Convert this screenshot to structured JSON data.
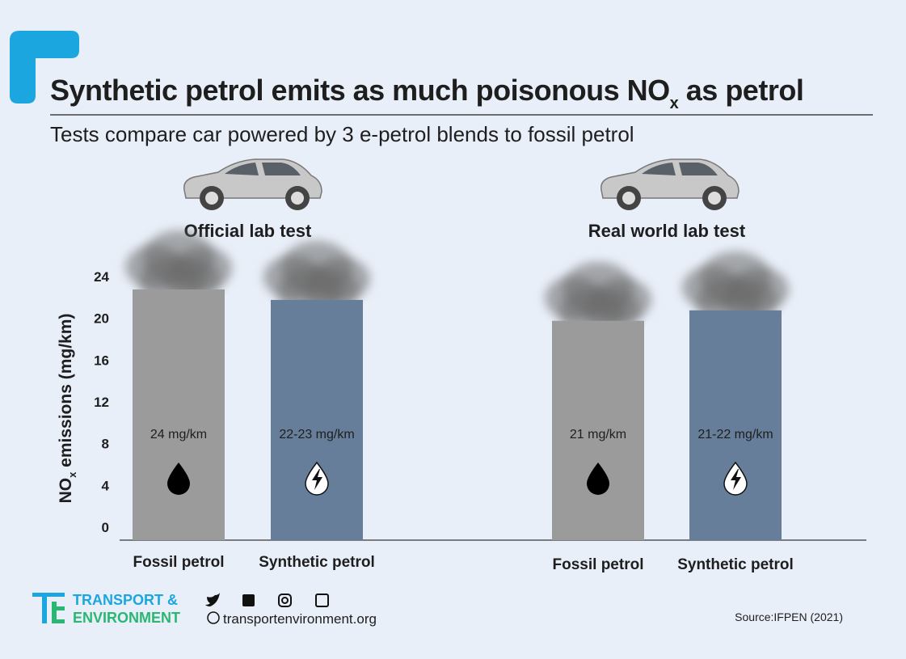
{
  "chart_data": {
    "type": "bar",
    "title": [
      "Synthetic petrol emits as much poisonous NO",
      "x",
      " as petrol"
    ],
    "subtitle": "Tests compare car powered by 3 e-petrol blends to fossil petrol",
    "y_label": [
      "NO",
      "x",
      " emissions (mg/km)"
    ],
    "groups": [
      "Official lab test",
      "Real world lab test"
    ],
    "categories": [
      "Fossil petrol",
      "Synthetic petrol",
      "Fossil petrol",
      "Synthetic petrol"
    ],
    "values": [
      24,
      23,
      21,
      22
    ],
    "value_labels": [
      "24 mg/km",
      "22-23 mg/km",
      "21 mg/km",
      "21-22 mg/km"
    ],
    "colors": [
      "#9b9b9b",
      "#667e99",
      "#9b9b9b",
      "#667e99"
    ],
    "ylim": [
      0,
      24
    ],
    "yticks": [
      0,
      4,
      8,
      12,
      16,
      20,
      24
    ]
  },
  "footer": {
    "brand": [
      "TRANSPORT &",
      "ENVIRONMENT"
    ],
    "website": "transportenvironment.org",
    "source": "Source:IFPEN (2021)"
  }
}
